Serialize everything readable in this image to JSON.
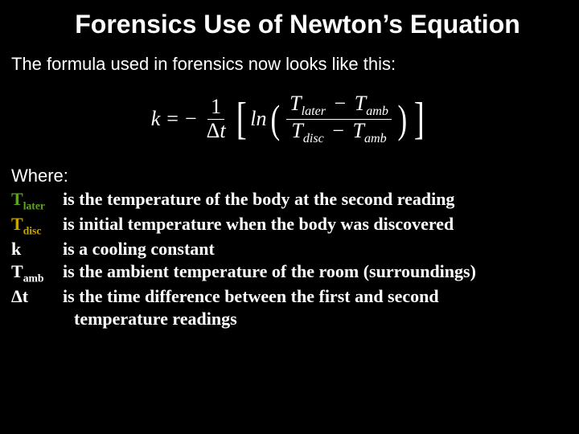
{
  "colors": {
    "background": "#000000",
    "text": "#ffffff",
    "green": "#5fa320",
    "yellow": "#c9a400"
  },
  "title": "Forensics Use of Newton’s Equation",
  "intro": "The formula used in forensics now looks like this:",
  "equation": {
    "lhs": "k",
    "equals": "=",
    "neg": "−",
    "frac1_num": "1",
    "frac1_den_delta": "Δ",
    "frac1_den_t": "t",
    "ln": "ln",
    "T": "T",
    "sub_later": "later",
    "sub_amb": "amb",
    "sub_disc": "disc",
    "minus": "−"
  },
  "where_label": "Where:",
  "defs": [
    {
      "sym_base": "T",
      "sym_sub": "later",
      "sym_color": "green",
      "text": "is the temperature of the body at the second reading"
    },
    {
      "sym_base": "T",
      "sym_sub": "disc",
      "sym_color": "yellow",
      "text": "is initial temperature when the body was discovered"
    },
    {
      "sym_base": "k",
      "sym_sub": "",
      "sym_color": "",
      "text": "is a cooling constant"
    },
    {
      "sym_base": "T",
      "sym_sub": "amb",
      "sym_color": "",
      "text": "is the ambient temperature of the room (surroundings)"
    },
    {
      "sym_base": "Δt",
      "sym_sub": "",
      "sym_color": "",
      "text": "is the time difference between the first and second"
    }
  ],
  "def_cont": "temperature readings"
}
